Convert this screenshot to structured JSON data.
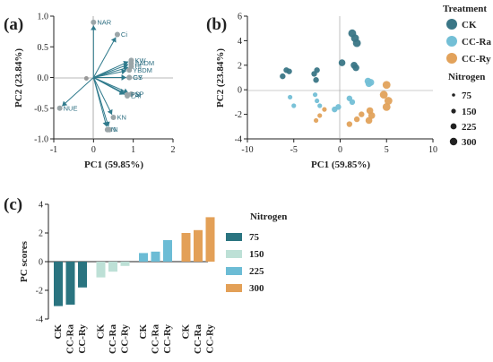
{
  "colors": {
    "CK": "#3a7686",
    "CC-Ra": "#73bfd6",
    "CC-Ry": "#e2a25b",
    "arrow": "#2f7a8c",
    "bar75": "#2a7480",
    "bar150": "#bde0d6",
    "bar225": "#6cbcd5",
    "bar300": "#e3a057"
  },
  "panel_a": {
    "letter": "(a)",
    "xlabel": "PC1 (59.85%)",
    "ylabel": "PC2 (23.84%)",
    "xticks": [
      "-1",
      "0",
      "1",
      "2"
    ],
    "yticks": [
      "1.0",
      "0.5",
      "0.0",
      "-0.5",
      "-1.0"
    ]
  },
  "panel_b": {
    "letter": "(b)",
    "xlabel": "PC1 (59.85%)",
    "ylabel": "PC2 (23.84%)",
    "xticks": [
      "-10",
      "-5",
      "0",
      "5",
      "10"
    ],
    "yticks": [
      "6",
      "4",
      "2",
      "0",
      "-2",
      "-4"
    ]
  },
  "panel_c": {
    "letter": "(c)",
    "ylabel": "PC scores",
    "yticks": [
      "4",
      "2",
      "0",
      "-2",
      "-4"
    ]
  },
  "legend_b": {
    "treatment_title": "Treatment",
    "treatments": [
      "CK",
      "CC-Ra",
      "CC-Ry"
    ],
    "nitrogen_title": "Nitrogen",
    "levels": [
      "75",
      "150",
      "225",
      "300"
    ]
  },
  "legend_c": {
    "title": "Nitrogen",
    "levels": [
      "75",
      "150",
      "225",
      "300"
    ]
  },
  "chart_data": [
    {
      "type": "scatter",
      "subtype": "biplot-loadings",
      "xlim": [
        -1,
        2
      ],
      "ylim": [
        -1,
        1
      ],
      "grid": false,
      "x": [
        0.0,
        0.6,
        0.95,
        0.95,
        0.95,
        0.9,
        0.9,
        0.9,
        0.95,
        0.85,
        0.85,
        0.5,
        0.4,
        0.35,
        -0.85
      ],
      "y": [
        0.9,
        0.7,
        0.28,
        0.23,
        0.18,
        0.12,
        0.0,
        0.0,
        -0.27,
        -0.3,
        -0.28,
        -0.65,
        -0.85,
        -0.85,
        -0.5
      ],
      "labels": [
        "NAR",
        "Ci",
        "KW",
        "AADM",
        "HI",
        "YBDM",
        "GS",
        "GY",
        "SP",
        "LAI",
        "PN",
        "KN",
        "N",
        "N",
        "NUE"
      ]
    },
    {
      "type": "scatter",
      "subtype": "pca-scores",
      "xlim": [
        -10,
        10
      ],
      "ylim": [
        -4,
        6
      ],
      "grid": false,
      "legend": "right",
      "series": [
        {
          "name": "CK",
          "x": [
            -5.8,
            -5.5,
            -6.2,
            -2.5,
            -2.8,
            -2.6,
            0.2,
            1.3,
            1.6,
            1.8,
            1.5,
            1.7
          ],
          "y": [
            1.6,
            1.5,
            1.1,
            1.6,
            1.3,
            0.8,
            2.2,
            4.6,
            4.2,
            3.8,
            2.0,
            1.8
          ],
          "sizes": [
            2,
            2,
            2,
            2,
            2,
            2,
            3,
            4,
            4,
            4,
            3,
            3
          ]
        },
        {
          "name": "CC-Ra",
          "x": [
            -5.4,
            -5.0,
            -2.7,
            -2.5,
            -2.2,
            -0.6,
            -0.2,
            1.0,
            1.3,
            3.0,
            3.3,
            3.1
          ],
          "y": [
            -0.6,
            -1.3,
            -0.4,
            -0.9,
            -1.3,
            -1.6,
            -1.4,
            -0.7,
            -1.0,
            0.7,
            0.6,
            0.5
          ],
          "sizes": [
            1,
            1,
            1,
            1,
            1,
            2,
            2,
            2,
            2,
            3,
            3,
            3
          ]
        },
        {
          "name": "CC-Ry",
          "x": [
            -2.6,
            -2.2,
            -1.7,
            1.0,
            1.8,
            2.3,
            3.2,
            3.4,
            3.1,
            4.7,
            5.0,
            5.2,
            5.0
          ],
          "y": [
            -2.5,
            -2.1,
            -1.6,
            -2.8,
            -2.4,
            -2.0,
            -1.7,
            -2.1,
            -2.5,
            -0.4,
            0.4,
            -0.9,
            -1.4
          ],
          "sizes": [
            1,
            1,
            1,
            2,
            2,
            2,
            3,
            3,
            3,
            4,
            4,
            4,
            4
          ]
        }
      ]
    },
    {
      "type": "bar",
      "ylim": [
        -4,
        4
      ],
      "grid": false,
      "legend": "right",
      "categories": [
        "CK",
        "CC-Ra",
        "CC-Ry",
        "CK",
        "CC-Ra",
        "CC-Ry",
        "CK",
        "CC-Ra",
        "CC-Ry",
        "CK",
        "CC-Ra",
        "CC-Ry"
      ],
      "groups": [
        "75",
        "150",
        "225",
        "300"
      ],
      "values": [
        -3.1,
        -3.0,
        -1.8,
        -1.1,
        -0.7,
        -0.3,
        0.6,
        0.7,
        1.5,
        2.0,
        2.2,
        3.1
      ]
    }
  ]
}
